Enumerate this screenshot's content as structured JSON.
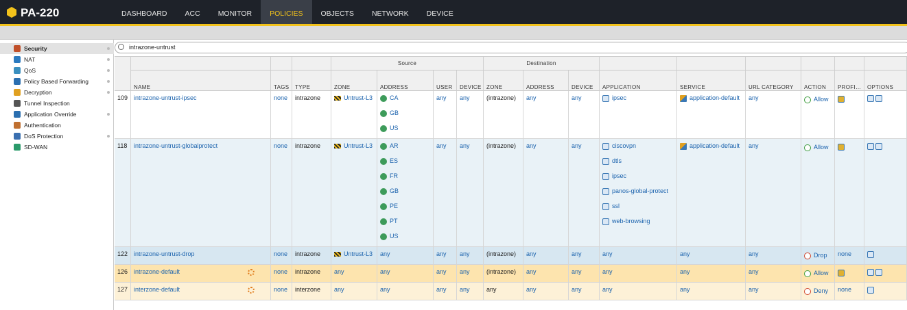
{
  "header": {
    "logo": "PA-220",
    "nav": [
      "DASHBOARD",
      "ACC",
      "MONITOR",
      "POLICIES",
      "OBJECTS",
      "NETWORK",
      "DEVICE"
    ],
    "active": 3
  },
  "sidebar": {
    "items": [
      "Security",
      "NAT",
      "QoS",
      "Policy Based Forwarding",
      "Decryption",
      "Tunnel Inspection",
      "Application Override",
      "Authentication",
      "DoS Protection",
      "SD-WAN"
    ],
    "active": 0
  },
  "search": "intrazone-untrust",
  "table": {
    "groups": [
      "Source",
      "Destination"
    ],
    "columns": [
      "NAME",
      "TAGS",
      "TYPE",
      "ZONE",
      "ADDRESS",
      "USER",
      "DEVICE",
      "ZONE",
      "ADDRESS",
      "DEVICE",
      "APPLICATION",
      "SERVICE",
      "URL CATEGORY",
      "ACTION",
      "PROFI…",
      "OPTIONS"
    ],
    "rows": [
      {
        "id": "109",
        "color": "#ffffff",
        "name": "intrazone-untrust-ipsec",
        "tags": "none",
        "type": "intrazone",
        "source_zone": [
          "Untrust-L3"
        ],
        "source_address": [
          "CA",
          "GB",
          "US"
        ],
        "source_user": "any",
        "source_device": "any",
        "destination_zone": "(intrazone)",
        "destination_address": "any",
        "destination_device": "any",
        "application": [
          "ipsec"
        ],
        "service": [
          "application-default"
        ],
        "url_category": "any",
        "action": "Allow",
        "action_color": "#3b9b3b"
      },
      {
        "id": "118",
        "color": "#e9f2f7",
        "name": "intrazone-untrust-globalprotect",
        "tags": "none",
        "type": "intrazone",
        "source_zone": [
          "Untrust-L3"
        ],
        "source_address": [
          "AR",
          "ES",
          "FR",
          "GB",
          "PE",
          "PT",
          "US"
        ],
        "source_user": "any",
        "source_device": "any",
        "destination_zone": "(intrazone)",
        "destination_address": "any",
        "destination_device": "any",
        "application": [
          "ciscovpn",
          "dtls",
          "ipsec",
          "panos-global-protect",
          "ssl",
          "web-browsing"
        ],
        "service": [
          "application-default"
        ],
        "url_category": "any",
        "action": "Allow",
        "action_color": "#3b9b3b"
      },
      {
        "id": "122",
        "color": "#d7e7f1",
        "name": "intrazone-untrust-drop",
        "tags": "none",
        "type": "intrazone",
        "source_zone": [
          "Untrust-L3"
        ],
        "source_address": "any",
        "source_user": "any",
        "source_device": "any",
        "destination_zone": "(intrazone)",
        "destination_address": "any",
        "destination_device": "any",
        "application": "any",
        "service": "any",
        "url_category": "any",
        "action": "Drop",
        "action_color": "#d0452a",
        "profile": "none"
      },
      {
        "id": "126",
        "color": "#fde4ae",
        "icon_color": "#e07b1a",
        "name": "intrazone-default",
        "tags": "none",
        "type": "intrazone",
        "source_zone": "any",
        "source_address": "any",
        "source_user": "any",
        "source_device": "any",
        "destination_zone": "(intrazone)",
        "destination_address": "any",
        "destination_device": "any",
        "application": "any",
        "service": "any",
        "url_category": "any",
        "action": "Allow",
        "action_color": "#3b9b3b"
      },
      {
        "id": "127",
        "color": "#fdf1d7",
        "icon_color": "#e07b1a",
        "name": "interzone-default",
        "tags": "none",
        "type": "interzone",
        "source_zone": "any",
        "source_address": "any",
        "source_user": "any",
        "source_device": "any",
        "destination_zone": "any",
        "destination_address": "any",
        "destination_device": "any",
        "application": "any",
        "service": "any",
        "url_category": "any",
        "action": "Deny",
        "action_color": "#d0452a",
        "profile": "none"
      }
    ]
  }
}
